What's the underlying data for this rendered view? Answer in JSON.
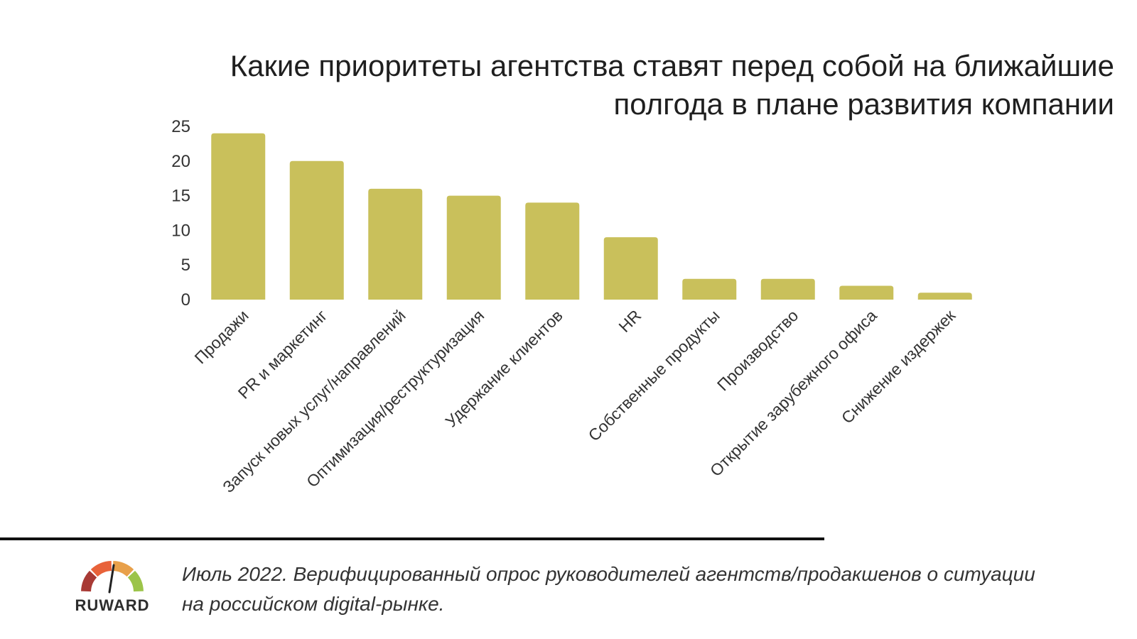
{
  "chart_data": {
    "type": "bar",
    "title_line1": "Какие приоритеты агентства ставят перед собой на ближайшие",
    "title_line2": "полгода в плане развития компании",
    "categories": [
      "Продажи",
      "PR и маркетинг",
      "Запуск новых услуг/направлений",
      "Оптимизация/реструктуризация",
      "Удержание клиентов",
      "HR",
      "Собственные продукты",
      "Производство",
      "Открытие зарубежного офиса",
      "Снижение издержек"
    ],
    "values": [
      24,
      20,
      16,
      15,
      14,
      9,
      3,
      3,
      2,
      1
    ],
    "ylim": [
      0,
      25
    ],
    "yticks": [
      "0",
      "5",
      "10",
      "15",
      "20",
      "25"
    ],
    "bar_color": "#c9c05b",
    "grid": false,
    "legend": "none"
  },
  "footer": {
    "text_line1": "Июль 2022. Верифицированный опрос руководителей агентств/продакшенов о ситуации",
    "text_line2": "на российском digital-рынке.",
    "logo_text": "RUWARD",
    "logo_colors": [
      "#a83a35",
      "#e8623a",
      "#e8a04a",
      "#9cc44a"
    ],
    "divider_color": "#111111"
  }
}
